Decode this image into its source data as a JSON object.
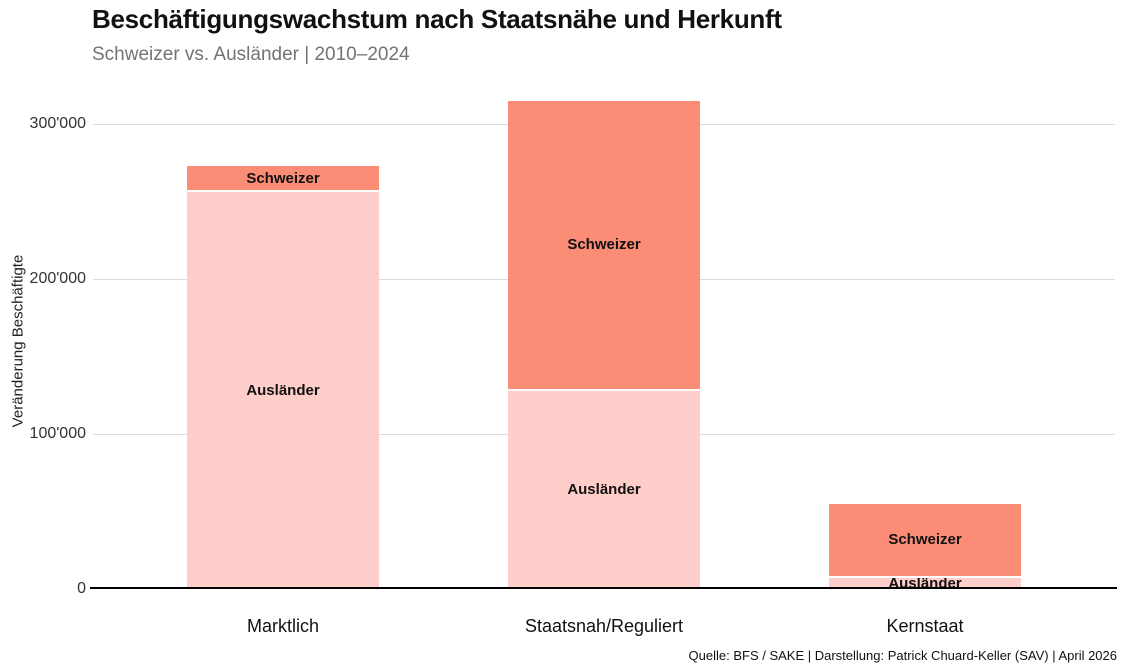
{
  "header": {
    "title": "Beschäftigungswachstum nach Staatsnähe und Herkunft",
    "subtitle": "Schweizer vs. Ausländer | 2010–2024"
  },
  "chart_data": {
    "type": "bar",
    "stacked": true,
    "title": "Beschäftigungswachstum nach Staatsnähe und Herkunft",
    "subtitle": "Schweizer vs. Ausländer | 2010–2024",
    "categories": [
      "Marktlich",
      "Staatsnah/Reguliert",
      "Kernstaat"
    ],
    "series": [
      {
        "name": "Ausländer",
        "color": "#FFCDCA",
        "values": [
          256000,
          128000,
          7000
        ]
      },
      {
        "name": "Schweizer",
        "color": "#FB8D76",
        "values": [
          17000,
          187000,
          48000
        ]
      }
    ],
    "totals": [
      273000,
      315000,
      55000
    ],
    "ylabel": "Veränderung Beschäftigte",
    "xlabel": "",
    "ylim": [
      0,
      320000
    ],
    "yticks": [
      {
        "value": 0,
        "label": "0"
      },
      {
        "value": 100000,
        "label": "100'000"
      },
      {
        "value": 200000,
        "label": "200'000"
      },
      {
        "value": 300000,
        "label": "300'000"
      }
    ],
    "grid": true,
    "legend_position": "none",
    "value_labels": "series name shown inside each bar segment"
  },
  "footer": {
    "source": "Quelle: BFS / SAKE | Darstellung: Patrick Chuard-Keller (SAV) | April 2026"
  },
  "colors": {
    "schweizer": "#FB8D76",
    "auslaender": "#FFCDCA",
    "gridline": "#DCDCDC",
    "axis": "#000000",
    "title": "#111111",
    "subtitle": "#737373",
    "tick_label": "#333333"
  }
}
